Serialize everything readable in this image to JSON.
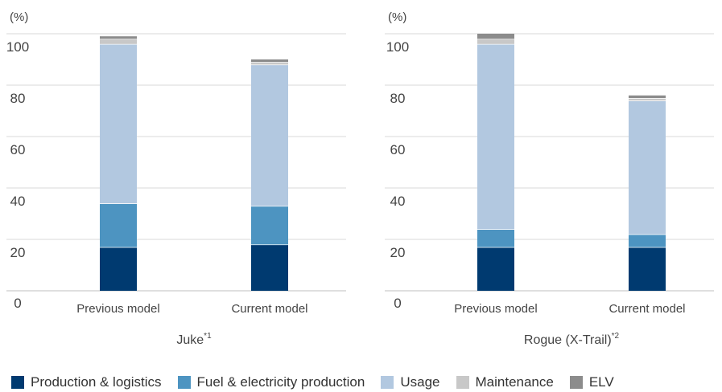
{
  "chart_data": [
    {
      "type": "bar",
      "stacked": true,
      "title": "Juke",
      "title_note": "*1",
      "unit_label": "(%)",
      "categories": [
        "Previous model",
        "Current model"
      ],
      "ylim": [
        0,
        100
      ],
      "yticks": [
        "0",
        "20",
        "40",
        "60",
        "80",
        "100"
      ],
      "grid": true,
      "series": [
        {
          "name": "Production & logistics",
          "values": [
            17,
            18
          ]
        },
        {
          "name": "Fuel & electricity production",
          "values": [
            17,
            15
          ]
        },
        {
          "name": "Usage",
          "values": [
            62,
            55
          ]
        },
        {
          "name": "Maintenance",
          "values": [
            2,
            1
          ]
        },
        {
          "name": "ELV",
          "values": [
            1,
            1
          ]
        }
      ]
    },
    {
      "type": "bar",
      "stacked": true,
      "title": "Rogue (X-Trail)",
      "title_note": "*2",
      "unit_label": "(%)",
      "categories": [
        "Previous model",
        "Current model"
      ],
      "ylim": [
        0,
        100
      ],
      "yticks": [
        "0",
        "20",
        "40",
        "60",
        "80",
        "100"
      ],
      "grid": true,
      "series": [
        {
          "name": "Production & logistics",
          "values": [
            17,
            17
          ]
        },
        {
          "name": "Fuel & electricity production",
          "values": [
            7,
            5
          ]
        },
        {
          "name": "Usage",
          "values": [
            72,
            52
          ]
        },
        {
          "name": "Maintenance",
          "values": [
            2,
            1
          ]
        },
        {
          "name": "ELV",
          "values": [
            2,
            1
          ]
        }
      ]
    }
  ],
  "series_colors": [
    "#003a70",
    "#4d94c1",
    "#b2c8e0",
    "#c8c8c8",
    "#8c8c8c"
  ],
  "legend": {
    "placement": "bottom",
    "items": [
      {
        "label": "Production & logistics",
        "color": "#003a70"
      },
      {
        "label": "Fuel & electricity production",
        "color": "#4d94c1"
      },
      {
        "label": "Usage",
        "color": "#b2c8e0"
      },
      {
        "label": "Maintenance",
        "color": "#c8c8c8"
      },
      {
        "label": "ELV",
        "color": "#8c8c8c"
      }
    ]
  }
}
